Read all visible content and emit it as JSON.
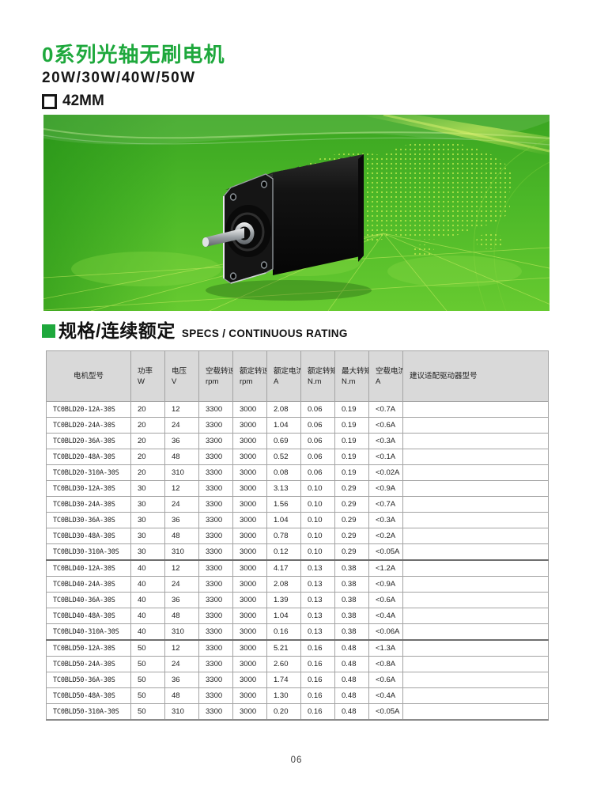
{
  "header": {
    "title": "0系列光轴无刷电机",
    "subtitle": "20W/30W/40W/50W",
    "frame_size": "42MM"
  },
  "section": {
    "title_cn": "规格/连续额定",
    "title_en": "SPECS / CONTINUOUS RATING"
  },
  "colors": {
    "accent_green": "#1ea83c",
    "banner_green_dark": "#3aa521",
    "banner_green_light": "#67ca30",
    "table_header_bg": "#d9d9d9"
  },
  "banner": {
    "image_description": "black 42mm square brushless motor on green world-map background"
  },
  "table": {
    "columns": [
      {
        "label": "电机型号",
        "unit": ""
      },
      {
        "label": "功率",
        "unit": "W"
      },
      {
        "label": "电压",
        "unit": "V"
      },
      {
        "label": "空载转速",
        "unit": "rpm"
      },
      {
        "label": "额定转速",
        "unit": "rpm"
      },
      {
        "label": "额定电流",
        "unit": "A"
      },
      {
        "label": "额定转矩",
        "unit": "N.m"
      },
      {
        "label": "最大转矩",
        "unit": "N.m"
      },
      {
        "label": "空载电流",
        "unit": "A"
      },
      {
        "label": "建议适配驱动器型号",
        "unit": ""
      }
    ],
    "rows": [
      [
        "TC0BLD20-12A-30S",
        "20",
        "12",
        "3300",
        "3000",
        "2.08",
        "0.06",
        "0.19",
        "<0.7A",
        ""
      ],
      [
        "TC0BLD20-24A-30S",
        "20",
        "24",
        "3300",
        "3000",
        "1.04",
        "0.06",
        "0.19",
        "<0.6A",
        ""
      ],
      [
        "TC0BLD20-36A-30S",
        "20",
        "36",
        "3300",
        "3000",
        "0.69",
        "0.06",
        "0.19",
        "<0.3A",
        ""
      ],
      [
        "TC0BLD20-48A-30S",
        "20",
        "48",
        "3300",
        "3000",
        "0.52",
        "0.06",
        "0.19",
        "<0.1A",
        ""
      ],
      [
        "TC0BLD20-310A-30S",
        "20",
        "310",
        "3300",
        "3000",
        "0.08",
        "0.06",
        "0.19",
        "<0.02A",
        ""
      ],
      [
        "TC0BLD30-12A-30S",
        "30",
        "12",
        "3300",
        "3000",
        "3.13",
        "0.10",
        "0.29",
        "<0.9A",
        ""
      ],
      [
        "TC0BLD30-24A-30S",
        "30",
        "24",
        "3300",
        "3000",
        "1.56",
        "0.10",
        "0.29",
        "<0.7A",
        ""
      ],
      [
        "TC0BLD30-36A-30S",
        "30",
        "36",
        "3300",
        "3000",
        "1.04",
        "0.10",
        "0.29",
        "<0.3A",
        ""
      ],
      [
        "TC0BLD30-48A-30S",
        "30",
        "48",
        "3300",
        "3000",
        "0.78",
        "0.10",
        "0.29",
        "<0.2A",
        ""
      ],
      [
        "TC0BLD30-310A-30S",
        "30",
        "310",
        "3300",
        "3000",
        "0.12",
        "0.10",
        "0.29",
        "<0.05A",
        ""
      ],
      [
        "TC0BLD40-12A-30S",
        "40",
        "12",
        "3300",
        "3000",
        "4.17",
        "0.13",
        "0.38",
        "<1.2A",
        ""
      ],
      [
        "TC0BLD40-24A-30S",
        "40",
        "24",
        "3300",
        "3000",
        "2.08",
        "0.13",
        "0.38",
        "<0.9A",
        ""
      ],
      [
        "TC0BLD40-36A-30S",
        "40",
        "36",
        "3300",
        "3000",
        "1.39",
        "0.13",
        "0.38",
        "<0.6A",
        ""
      ],
      [
        "TC0BLD40-48A-30S",
        "40",
        "48",
        "3300",
        "3000",
        "1.04",
        "0.13",
        "0.38",
        "<0.4A",
        ""
      ],
      [
        "TC0BLD40-310A-30S",
        "40",
        "310",
        "3300",
        "3000",
        "0.16",
        "0.13",
        "0.38",
        "<0.06A",
        ""
      ],
      [
        "TC0BLD50-12A-30S",
        "50",
        "12",
        "3300",
        "3000",
        "5.21",
        "0.16",
        "0.48",
        "<1.3A",
        ""
      ],
      [
        "TC0BLD50-24A-30S",
        "50",
        "24",
        "3300",
        "3000",
        "2.60",
        "0.16",
        "0.48",
        "<0.8A",
        ""
      ],
      [
        "TC0BLD50-36A-30S",
        "50",
        "36",
        "3300",
        "3000",
        "1.74",
        "0.16",
        "0.48",
        "<0.6A",
        ""
      ],
      [
        "TC0BLD50-48A-30S",
        "50",
        "48",
        "3300",
        "3000",
        "1.30",
        "0.16",
        "0.48",
        "<0.4A",
        ""
      ],
      [
        "TC0BLD50-310A-30S",
        "50",
        "310",
        "3300",
        "3000",
        "0.20",
        "0.16",
        "0.48",
        "<0.05A",
        ""
      ]
    ]
  },
  "footer": {
    "page_number": "06"
  }
}
